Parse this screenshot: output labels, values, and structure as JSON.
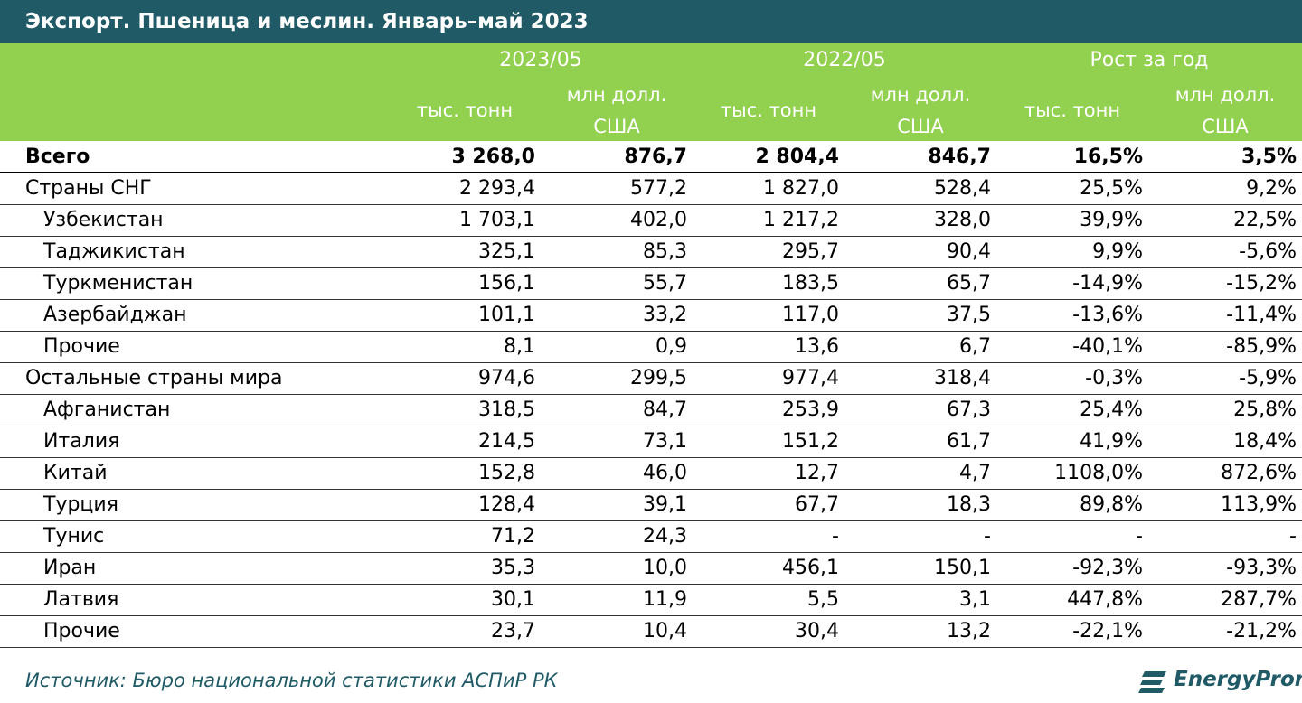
{
  "title": "Экспорт. Пшеница и меслин. Январь–май 2023",
  "header": {
    "periods": [
      "2023/05",
      "2022/05",
      "Рост за год"
    ],
    "unit_tonnes": "тыс. тонн",
    "unit_usd_line1": "млн долл.",
    "unit_usd_line2": "США"
  },
  "rows": [
    {
      "name": "Всего",
      "v": [
        "3 268,0",
        "876,7",
        "2 804,4",
        "846,7",
        "16,5%",
        "3,5%"
      ]
    },
    {
      "name": "Страны СНГ",
      "v": [
        "2 293,4",
        "577,2",
        "1 827,0",
        "528,4",
        "25,5%",
        "9,2%"
      ]
    },
    {
      "name": "Узбекистан",
      "v": [
        "1 703,1",
        "402,0",
        "1 217,2",
        "328,0",
        "39,9%",
        "22,5%"
      ]
    },
    {
      "name": "Таджикистан",
      "v": [
        "325,1",
        "85,3",
        "295,7",
        "90,4",
        "9,9%",
        "-5,6%"
      ]
    },
    {
      "name": "Туркменистан",
      "v": [
        "156,1",
        "55,7",
        "183,5",
        "65,7",
        "-14,9%",
        "-15,2%"
      ]
    },
    {
      "name": "Азербайджан",
      "v": [
        "101,1",
        "33,2",
        "117,0",
        "37,5",
        "-13,6%",
        "-11,4%"
      ]
    },
    {
      "name": "Прочие",
      "v": [
        "8,1",
        "0,9",
        "13,6",
        "6,7",
        "-40,1%",
        "-85,9%"
      ]
    },
    {
      "name": "Остальные страны мира",
      "v": [
        "974,6",
        "299,5",
        "977,4",
        "318,4",
        "-0,3%",
        "-5,9%"
      ]
    },
    {
      "name": "Афганистан",
      "v": [
        "318,5",
        "84,7",
        "253,9",
        "67,3",
        "25,4%",
        "25,8%"
      ]
    },
    {
      "name": "Италия",
      "v": [
        "214,5",
        "73,1",
        "151,2",
        "61,7",
        "41,9%",
        "18,4%"
      ]
    },
    {
      "name": "Китай",
      "v": [
        "152,8",
        "46,0",
        "12,7",
        "4,7",
        "1108,0%",
        "872,6%"
      ]
    },
    {
      "name": "Турция",
      "v": [
        "128,4",
        "39,1",
        "67,7",
        "18,3",
        "89,8%",
        "113,9%"
      ]
    },
    {
      "name": "Тунис",
      "v": [
        "71,2",
        "24,3",
        "-",
        "-",
        "-",
        "-"
      ]
    },
    {
      "name": "Иран",
      "v": [
        "35,3",
        "10,0",
        "456,1",
        "150,1",
        "-92,3%",
        "-93,3%"
      ]
    },
    {
      "name": "Латвия",
      "v": [
        "30,1",
        "11,9",
        "5,5",
        "3,1",
        "447,8%",
        "287,7%"
      ]
    },
    {
      "name": "Прочие",
      "v": [
        "23,7",
        "10,4",
        "30,4",
        "13,2",
        "-22,1%",
        "-21,2%"
      ]
    }
  ],
  "footer": {
    "source": "Источник: Бюро национальной статистики АСПиР РК",
    "logo": "EnergyProm"
  },
  "colors": {
    "title_bg": "#1f5a66",
    "header_bg": "#92d050",
    "header_text": "#ffffff",
    "source_text": "#1f5a66"
  }
}
